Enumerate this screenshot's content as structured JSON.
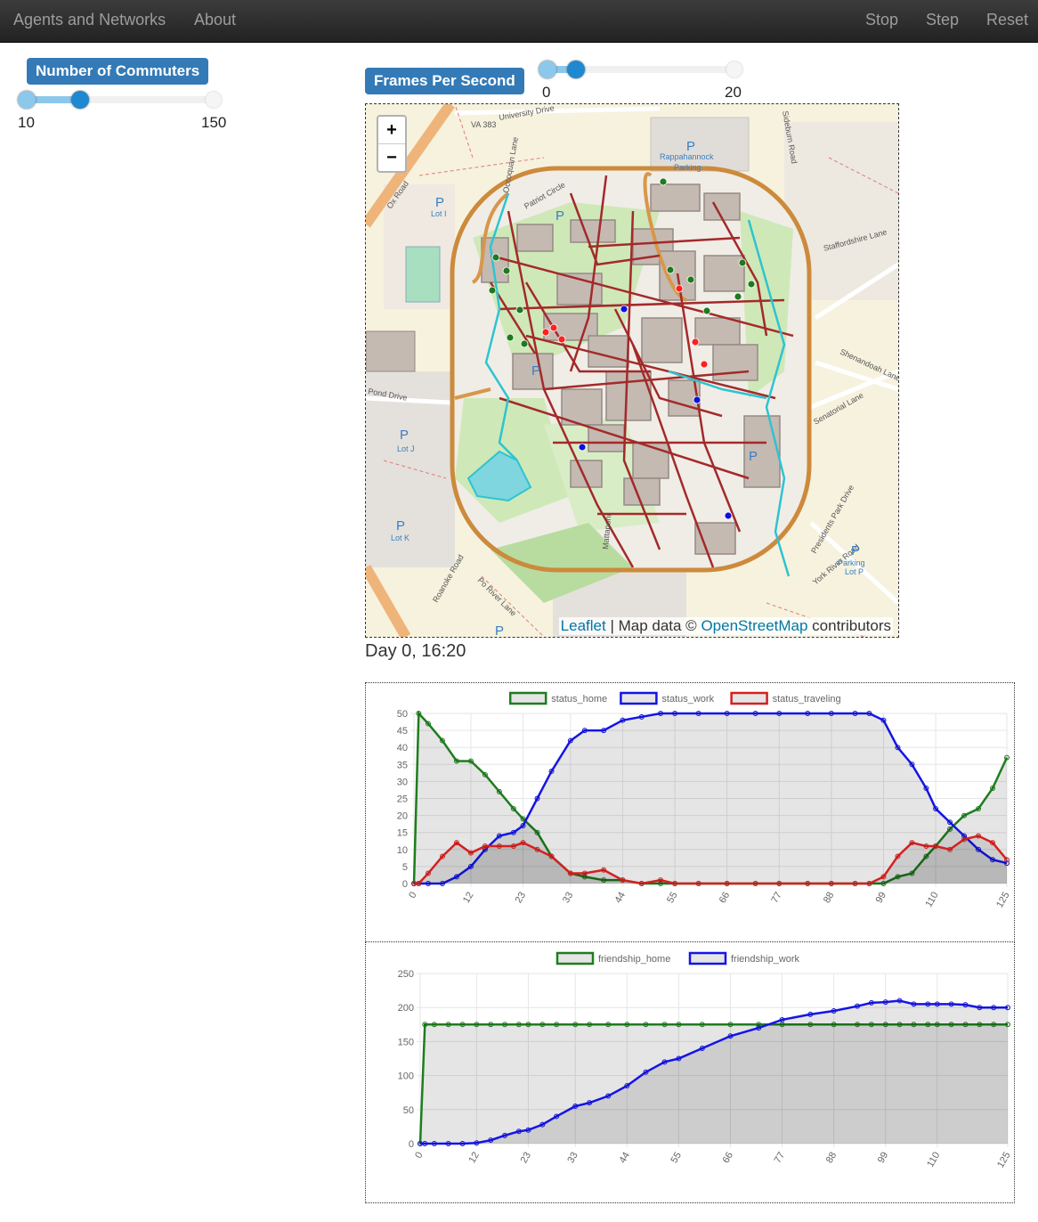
{
  "navbar": {
    "brand": "Agents and Networks",
    "links": [
      "About"
    ],
    "controls": [
      "Stop",
      "Step",
      "Reset"
    ]
  },
  "sliders": [
    {
      "label": "Number of Commuters",
      "min": 10,
      "max": 150,
      "value": 50
    },
    {
      "label": "Frames Per Second",
      "min": 0,
      "max": 20,
      "value": 3
    }
  ],
  "map": {
    "zoom": [
      "+",
      "−"
    ],
    "parking": "P",
    "labels": [
      "University Drive",
      "VA 383",
      "Rappahannock",
      "Parking",
      "Occoquan Lane",
      "Patriot Circle",
      "Lot I",
      "Ox Road",
      "Sideburn Road",
      "Staffordshire Lane",
      "Shenandoah Lane",
      "Senatorial Lane",
      "Pond Drive",
      "Lot J",
      "Lot K",
      "Roanoke Road",
      "Po River Lane",
      "Mattaponi",
      "York River Road",
      "Presidents Park Drive",
      "Parking",
      "Lot P"
    ],
    "attribution": {
      "leaflet": "Leaflet",
      "text": " | Map data © ",
      "osm": "OpenStreetMap",
      "suffix": " contributors"
    }
  },
  "status": "Day 0, 16:20",
  "chart_data": [
    {
      "type": "line",
      "x": [
        0,
        1,
        3,
        6,
        9,
        12,
        15,
        18,
        21,
        23,
        26,
        29,
        33,
        36,
        40,
        44,
        48,
        52,
        55,
        60,
        66,
        72,
        77,
        83,
        88,
        93,
        96,
        99,
        102,
        105,
        108,
        110,
        113,
        116,
        119,
        122,
        125
      ],
      "xlim": [
        0,
        125
      ],
      "xticks": [
        0,
        12,
        23,
        33,
        44,
        55,
        66,
        77,
        88,
        99,
        110,
        125
      ],
      "ylim": [
        0,
        50
      ],
      "yticks": [
        0,
        5,
        10,
        15,
        20,
        25,
        30,
        35,
        40,
        45,
        50
      ],
      "grid": true,
      "legend": "top",
      "series": [
        {
          "name": "status_home",
          "color": "#1e7d1e",
          "values": [
            0,
            50,
            47,
            42,
            36,
            36,
            32,
            27,
            22,
            19,
            15,
            8,
            3,
            2,
            1,
            1,
            0,
            0,
            0,
            0,
            0,
            0,
            0,
            0,
            0,
            0,
            0,
            0,
            2,
            3,
            8,
            11,
            16,
            20,
            22,
            28,
            37
          ]
        },
        {
          "name": "status_work",
          "color": "#1414e6",
          "values": [
            0,
            0,
            0,
            0,
            2,
            5,
            10,
            14,
            15,
            17,
            25,
            33,
            42,
            45,
            45,
            48,
            49,
            50,
            50,
            50,
            50,
            50,
            50,
            50,
            50,
            50,
            50,
            48,
            40,
            35,
            28,
            22,
            18,
            14,
            10,
            7,
            6
          ]
        },
        {
          "name": "status_traveling",
          "color": "#d42020",
          "values": [
            0,
            0,
            3,
            8,
            12,
            9,
            11,
            11,
            11,
            12,
            10,
            8,
            3,
            3,
            4,
            1,
            0,
            1,
            0,
            0,
            0,
            0,
            0,
            0,
            0,
            0,
            0,
            2,
            8,
            12,
            11,
            11,
            10,
            13,
            14,
            12,
            7
          ]
        }
      ]
    },
    {
      "type": "line",
      "x": [
        0,
        1,
        3,
        6,
        9,
        12,
        15,
        18,
        21,
        23,
        26,
        29,
        33,
        36,
        40,
        44,
        48,
        52,
        55,
        60,
        66,
        72,
        77,
        83,
        88,
        93,
        96,
        99,
        102,
        105,
        108,
        110,
        113,
        116,
        119,
        122,
        125
      ],
      "xlim": [
        0,
        125
      ],
      "xticks": [
        0,
        12,
        23,
        33,
        44,
        55,
        66,
        77,
        88,
        99,
        110,
        125
      ],
      "ylim": [
        0,
        250
      ],
      "yticks": [
        0,
        50,
        100,
        150,
        200,
        250
      ],
      "grid": true,
      "legend": "top",
      "series": [
        {
          "name": "friendship_home",
          "color": "#1e7d1e",
          "values": [
            0,
            175,
            175,
            175,
            175,
            175,
            175,
            175,
            175,
            175,
            175,
            175,
            175,
            175,
            175,
            175,
            175,
            175,
            175,
            175,
            175,
            175,
            175,
            175,
            175,
            175,
            175,
            175,
            175,
            175,
            175,
            175,
            175,
            175,
            175,
            175,
            175
          ]
        },
        {
          "name": "friendship_work",
          "color": "#1414e6",
          "values": [
            0,
            0,
            0,
            0,
            0,
            1,
            5,
            12,
            18,
            20,
            28,
            40,
            55,
            60,
            70,
            85,
            105,
            120,
            125,
            140,
            158,
            170,
            182,
            190,
            195,
            202,
            207,
            208,
            210,
            205,
            205,
            205,
            205,
            204,
            200,
            200,
            200
          ]
        }
      ]
    }
  ]
}
